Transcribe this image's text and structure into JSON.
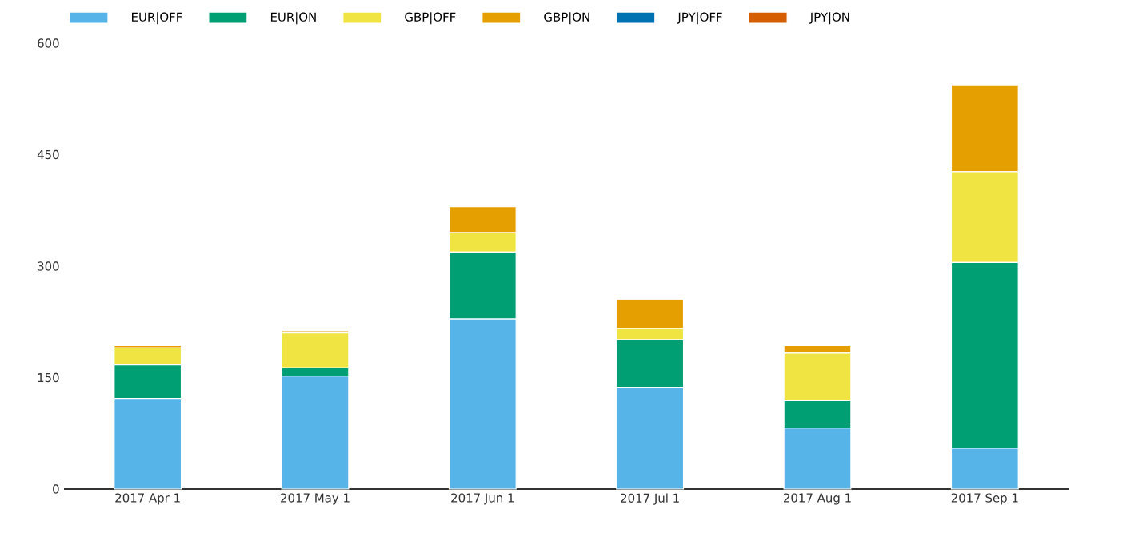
{
  "chart_data": {
    "type": "bar",
    "stacked": true,
    "categories": [
      "2017 Apr 1",
      "2017 May 1",
      "2017 Jun 1",
      "2017 Jul 1",
      "2017 Aug 1",
      "2017 Sep 1"
    ],
    "series": [
      {
        "name": "EUR|OFF",
        "color": "#56b4e9",
        "values": [
          122,
          152,
          229,
          137,
          82,
          55
        ]
      },
      {
        "name": "EUR|ON",
        "color": "#009e73",
        "values": [
          45,
          11,
          90,
          64,
          37,
          250
        ]
      },
      {
        "name": "GBP|OFF",
        "color": "#f0e442",
        "values": [
          23,
          47,
          26,
          15,
          64,
          122
        ]
      },
      {
        "name": "GBP|ON",
        "color": "#e69f00",
        "values": [
          3,
          3,
          35,
          39,
          10,
          117
        ]
      },
      {
        "name": "JPY|OFF",
        "color": "#0072b2",
        "values": [
          0,
          0,
          0,
          0,
          0,
          0
        ]
      },
      {
        "name": "JPY|ON",
        "color": "#d55e00",
        "values": [
          0,
          0,
          0,
          0,
          0,
          0
        ]
      }
    ],
    "ylim": [
      0,
      600
    ],
    "yticks": [
      0,
      150,
      300,
      450,
      600
    ],
    "grid": false,
    "legend": "top left"
  }
}
